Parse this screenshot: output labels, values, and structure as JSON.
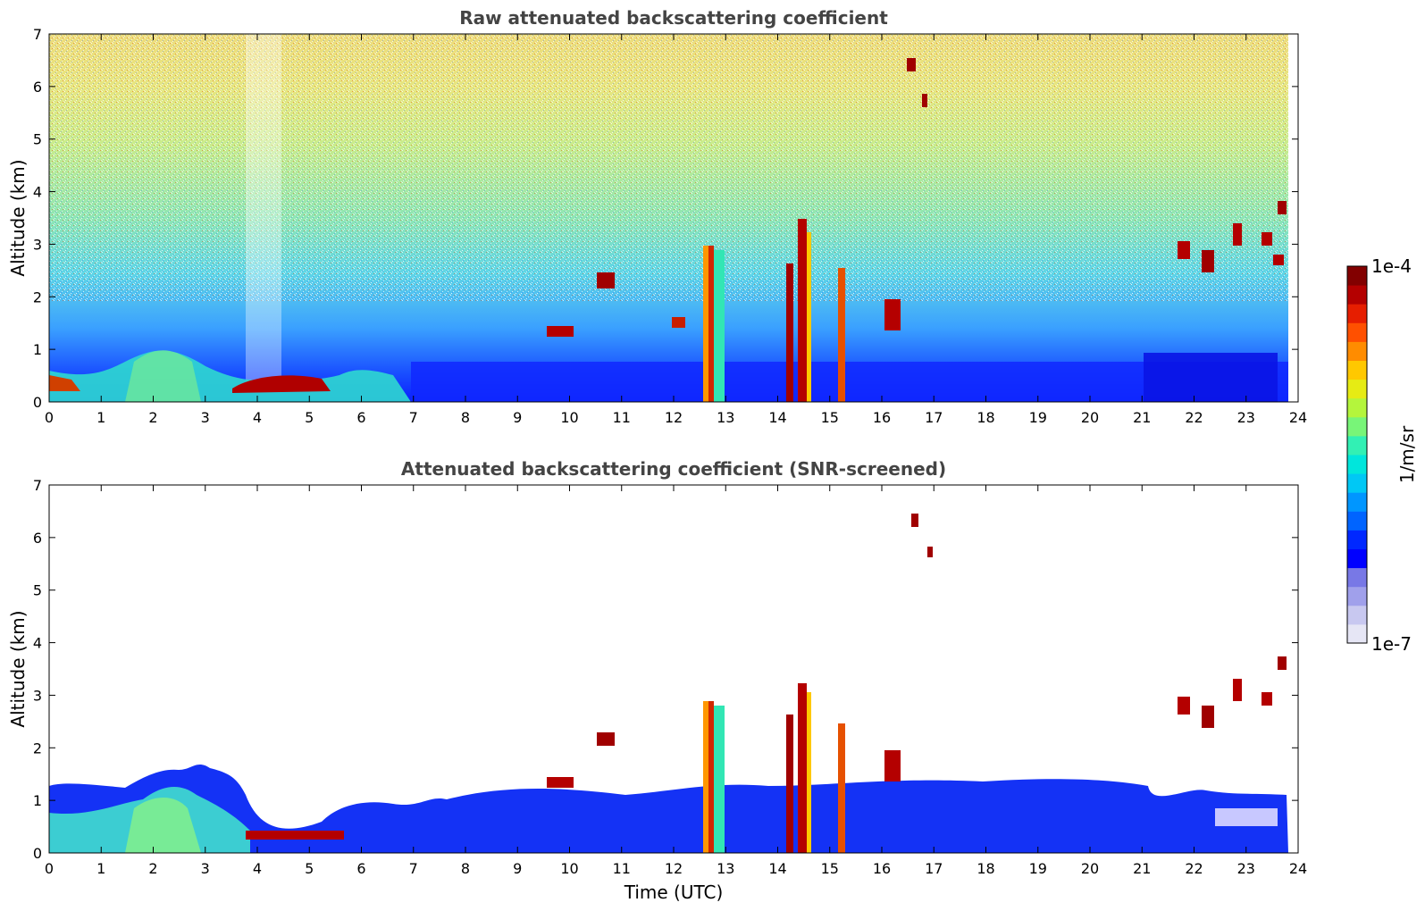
{
  "chart_data": [
    {
      "type": "heatmap",
      "title": "Raw attenuated backscattering coefficient",
      "xlabel": "",
      "ylabel": "Altitude (km)",
      "xlim": [
        0,
        24
      ],
      "ylim": [
        0,
        7
      ],
      "xticks": [
        "0",
        "1",
        "2",
        "3",
        "4",
        "5",
        "6",
        "7",
        "8",
        "9",
        "10",
        "11",
        "12",
        "13",
        "14",
        "15",
        "16",
        "17",
        "18",
        "19",
        "20",
        "21",
        "22",
        "23",
        "24"
      ],
      "yticks": [
        "0",
        "1",
        "2",
        "3",
        "4",
        "5",
        "6",
        "7"
      ],
      "grid": false,
      "features": [
        {
          "kind": "aerosol_layer",
          "x_range": [
            0,
            6.8
          ],
          "top_km": 0.9,
          "level": "green-cyan"
        },
        {
          "kind": "dense_layer",
          "x_range": [
            3.7,
            4.9
          ],
          "top_km": 0.45,
          "level": "dark red"
        },
        {
          "kind": "noise_background",
          "x_range": [
            0,
            24
          ],
          "altitude_km": [
            2,
            7
          ],
          "level": "yellow-red"
        },
        {
          "kind": "cloud_column",
          "x_range": [
            12.55,
            12.95
          ],
          "top_km": 2.9,
          "level": "red"
        },
        {
          "kind": "cloud_column",
          "x_range": [
            14.15,
            14.3
          ],
          "top_km": 2.6,
          "level": "dark red"
        },
        {
          "kind": "cloud_column",
          "x_range": [
            14.35,
            14.55
          ],
          "top_km": 3.4,
          "level": "dark red"
        },
        {
          "kind": "cloud_column",
          "x_range": [
            15.15,
            15.3
          ],
          "top_km": 2.6,
          "level": "red"
        },
        {
          "kind": "cloud_patches",
          "x_range": [
            21.7,
            23.8
          ],
          "altitude_km": [
            2.2,
            3.8
          ],
          "level": "dark red"
        }
      ]
    },
    {
      "type": "heatmap",
      "title": "Attenuated backscattering coefficient (SNR-screened)",
      "xlabel": "Time (UTC)",
      "ylabel": "Altitude (km)",
      "xlim": [
        0,
        24
      ],
      "ylim": [
        0,
        7
      ],
      "xticks": [
        "0",
        "1",
        "2",
        "3",
        "4",
        "5",
        "6",
        "7",
        "8",
        "9",
        "10",
        "11",
        "12",
        "13",
        "14",
        "15",
        "16",
        "17",
        "18",
        "19",
        "20",
        "21",
        "22",
        "23",
        "24"
      ],
      "yticks": [
        "0",
        "1",
        "2",
        "3",
        "4",
        "5",
        "6",
        "7"
      ],
      "grid": false,
      "features": [
        {
          "kind": "boundary_layer",
          "x_range": [
            0,
            23.8
          ],
          "top_km": 1.1,
          "level": "blue"
        },
        {
          "kind": "aerosol_layer",
          "x_range": [
            1.5,
            3.7
          ],
          "top_km": 1.6,
          "level": "cyan-green"
        },
        {
          "kind": "cloud_column",
          "x_range": [
            12.55,
            12.95
          ],
          "top_km": 2.9,
          "level": "red"
        },
        {
          "kind": "cloud_column",
          "x_range": [
            14.15,
            14.55
          ],
          "top_km": 3.3,
          "level": "dark red"
        },
        {
          "kind": "cloud_column",
          "x_range": [
            15.15,
            15.3
          ],
          "top_km": 2.4,
          "level": "red"
        },
        {
          "kind": "cloud_streak",
          "x_range": [
            16.5,
            17.0
          ],
          "altitude_km": [
            5.6,
            6.5
          ],
          "level": "dark red"
        },
        {
          "kind": "cloud_patches",
          "x_range": [
            21.7,
            23.8
          ],
          "altitude_km": [
            2.1,
            3.8
          ],
          "level": "dark red"
        }
      ]
    }
  ],
  "colorbar": {
    "label": "1/m/sr",
    "max_label": "1e-4",
    "min_label": "1e-7",
    "scale": "log",
    "range": [
      1e-07,
      0.0001
    ],
    "colors": [
      "#e6e6f5",
      "#c8c8f0",
      "#a0a0eb",
      "#7878e6",
      "#0000ff",
      "#0028ff",
      "#0064ff",
      "#0096ff",
      "#00c8f5",
      "#00e6dc",
      "#32f0b4",
      "#78f578",
      "#b4f53c",
      "#e6eb14",
      "#ffc800",
      "#ff8c00",
      "#ff5000",
      "#e61e00",
      "#b40000",
      "#820000"
    ]
  }
}
